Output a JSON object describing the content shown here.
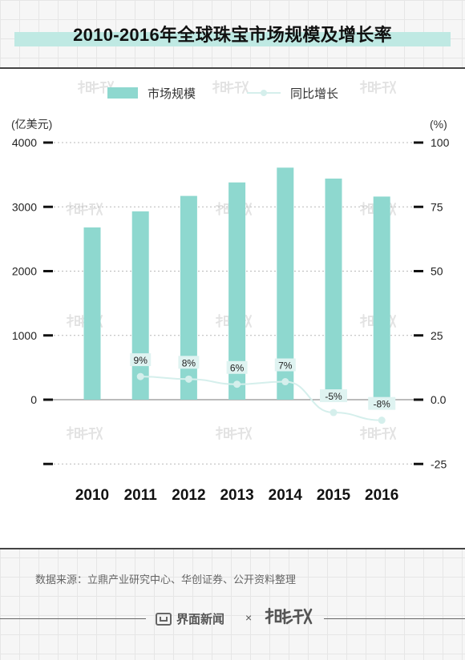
{
  "colors": {
    "bar": "#8ed8cf",
    "line": "#d5efec",
    "marker": "#d5efec",
    "label_bg": "#dff3f1",
    "title_band": "#bfe9e3",
    "axis_tick": "#111111",
    "gridline": "#b8b8b8"
  },
  "title": "2010-2016年全球珠宝市场规模及增长率",
  "source": "数据来源：立鼎产业研究中心、华创证券、公开资料整理",
  "brand": {
    "name": "界面新闻",
    "separator": "×",
    "logo_icon": "jiemian-logo-icon",
    "partner_logo": "data-wire-logo-icon"
  },
  "chart_data": {
    "type": "bar",
    "categories": [
      "2010",
      "2011",
      "2012",
      "2013",
      "2014",
      "2015",
      "2016"
    ],
    "series": [
      {
        "name": "市场规模",
        "type": "bar",
        "axis": "left",
        "values": [
          2680,
          2930,
          3170,
          3380,
          3610,
          3440,
          3160
        ]
      },
      {
        "name": "同比增长",
        "type": "line",
        "axis": "right",
        "values": [
          null,
          9,
          8,
          6,
          7,
          -5,
          -8
        ],
        "labels": [
          "",
          "9%",
          "8%",
          "6%",
          "7%",
          "-5%",
          "-8%"
        ]
      }
    ],
    "left_axis": {
      "unit": "(亿美元)",
      "ticks": [
        0,
        1000,
        2000,
        3000,
        4000
      ],
      "tick_labels": [
        "0",
        "1000",
        "2000",
        "3000",
        "4000"
      ],
      "range": [
        -1000,
        4000
      ]
    },
    "right_axis": {
      "unit": "(%)",
      "ticks": [
        -25,
        0,
        25,
        50,
        75,
        100
      ],
      "tick_labels": [
        "-25",
        "0.0",
        "25",
        "50",
        "75",
        "100"
      ],
      "range": [
        -25,
        100
      ]
    },
    "grid": true,
    "legend": {
      "placement": "top",
      "items": [
        "市场规模",
        "同比增长"
      ]
    }
  }
}
